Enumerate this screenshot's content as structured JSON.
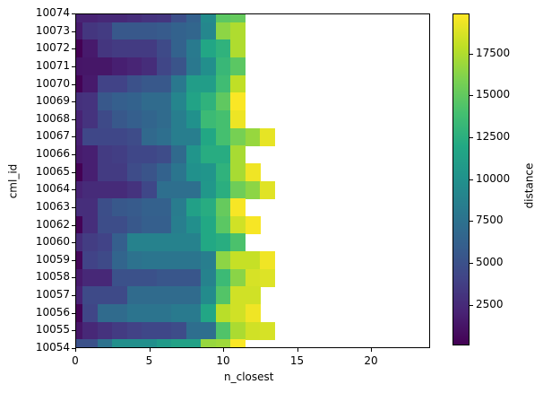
{
  "chart_data": {
    "type": "heatmap",
    "title": "",
    "xlabel": "n_closest",
    "ylabel": "cml_id",
    "colorbar_label": "distance",
    "colormap": "viridis",
    "xlim": [
      0,
      24
    ],
    "x_ticks": [
      0,
      5,
      10,
      15,
      20
    ],
    "y_categories": [
      "10074",
      "10073",
      "10072",
      "10071",
      "10070",
      "10069",
      "10068",
      "10067",
      "10066",
      "10065",
      "10064",
      "10063",
      "10062",
      "10060",
      "10059",
      "10058",
      "10057",
      "10056",
      "10055",
      "10054"
    ],
    "colorbar_range": [
      80,
      19900
    ],
    "colorbar_ticks": [
      2500,
      5000,
      7500,
      10000,
      12500,
      15000,
      17500
    ],
    "grid": false,
    "rows": {
      "10074": [
        2000,
        2000,
        2300,
        2300,
        2600,
        3000,
        3200,
        4800,
        6200,
        9500,
        14800,
        15200
      ],
      "10073": [
        1500,
        3200,
        3500,
        5500,
        5500,
        5500,
        5700,
        6300,
        6600,
        9200,
        16500,
        17500
      ],
      "10072": [
        100,
        1500,
        3200,
        3500,
        3500,
        3500,
        4500,
        6300,
        8200,
        11800,
        12800,
        17500
      ],
      "10071": [
        1200,
        1300,
        1300,
        1800,
        2100,
        2600,
        4200,
        5200,
        8000,
        9800,
        13300,
        14800
      ],
      "10070": [
        200,
        1500,
        4000,
        4000,
        5000,
        5500,
        5500,
        8000,
        11000,
        11000,
        13700,
        18000
      ],
      "10069": [
        2800,
        3000,
        5500,
        6000,
        6300,
        7000,
        7000,
        9000,
        11500,
        12800,
        15000,
        19800
      ],
      "10068": [
        2000,
        3000,
        4500,
        5500,
        6000,
        6500,
        7000,
        8500,
        10000,
        13500,
        14000,
        19400
      ],
      "10067": [
        1800,
        4300,
        4300,
        4300,
        4600,
        6800,
        7300,
        8500,
        8500,
        11900,
        14000,
        15800,
        16800,
        19200
      ],
      "10066": [
        1500,
        1800,
        3500,
        3700,
        4300,
        4300,
        4600,
        6900,
        10300,
        12300,
        12300,
        17300
      ],
      "10065": [
        100,
        1800,
        3500,
        3500,
        4600,
        5200,
        6300,
        7800,
        10000,
        10300,
        12800,
        17300,
        19500
      ],
      "10064": [
        2000,
        2500,
        2500,
        2500,
        3000,
        4300,
        7300,
        7300,
        7300,
        10500,
        12500,
        15500,
        16500,
        19000
      ],
      "10063": [
        2700,
        2700,
        4800,
        5500,
        5700,
        6200,
        6200,
        8300,
        11300,
        12300,
        15200,
        19700
      ],
      "10062": [
        200,
        2700,
        4700,
        4700,
        5500,
        6000,
        6000,
        8500,
        9800,
        12000,
        14800,
        18500,
        19700
      ],
      "10060": [
        2600,
        3600,
        4000,
        6000,
        8800,
        8800,
        8800,
        8800,
        8800,
        12000,
        12400,
        14200
      ],
      "10059": [
        400,
        4000,
        4500,
        6500,
        7500,
        7800,
        7800,
        7800,
        7800,
        8500,
        16500,
        18200,
        18200,
        19500
      ],
      "10058": [
        1500,
        2300,
        2300,
        5000,
        5000,
        5000,
        5400,
        5400,
        5400,
        8800,
        13500,
        16400,
        18700,
        18900
      ],
      "10057": [
        2000,
        4500,
        4500,
        4500,
        7000,
        7000,
        7000,
        7000,
        7000,
        9500,
        14500,
        18500,
        18500
      ],
      "10056": [
        200,
        4200,
        7000,
        7000,
        7700,
        7700,
        7700,
        8200,
        8200,
        11800,
        17800,
        18500,
        19500
      ],
      "10055": [
        1200,
        2300,
        2900,
        3500,
        3900,
        4300,
        4300,
        4600,
        7200,
        7200,
        14400,
        17400,
        18500,
        18700
      ],
      "10054": [
        5000,
        5000,
        7500,
        9800,
        9800,
        9800,
        10800,
        11400,
        11400,
        16800,
        17000,
        19800
      ]
    }
  }
}
